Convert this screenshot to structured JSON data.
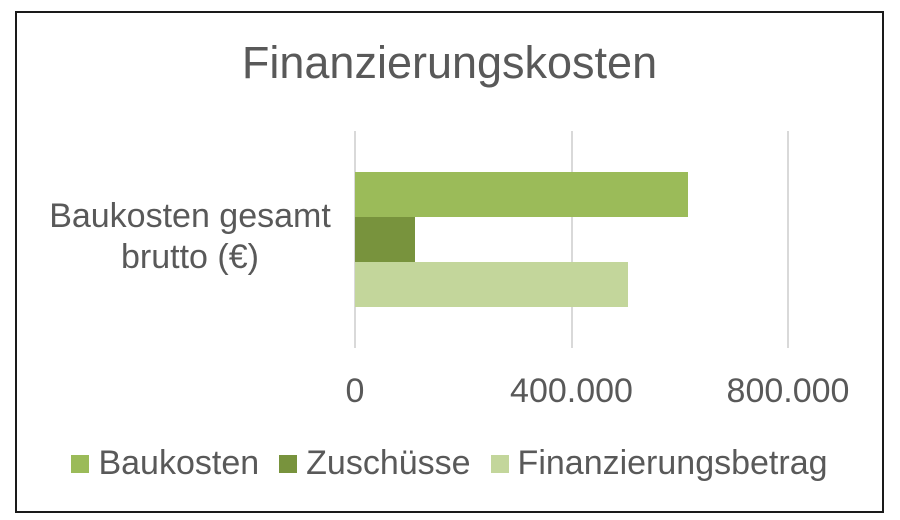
{
  "window": {
    "background": "#ffffff",
    "frame_border_color": "#1a1a1a"
  },
  "colors": {
    "text_gray": "#595959",
    "gridline": "#d9d9d9"
  },
  "chart_data": {
    "type": "bar",
    "orientation": "horizontal",
    "title": "Finanzierungskosten",
    "categories": [
      "Baukosten gesamt brutto (€)"
    ],
    "series": [
      {
        "name": "Baukosten",
        "color": "#9bbb59",
        "values": [
          615000
        ]
      },
      {
        "name": "Zuschüsse",
        "color": "#78933d",
        "values": [
          110000
        ]
      },
      {
        "name": "Finanzierungsbetrag",
        "color": "#c3d69b",
        "values": [
          505000
        ]
      }
    ],
    "xlim": [
      0,
      800000
    ],
    "x_ticks": [
      {
        "value": 0,
        "label": "0"
      },
      {
        "value": 400000,
        "label": "400.000"
      },
      {
        "value": 800000,
        "label": "800.000"
      }
    ],
    "grid": true,
    "legend_position": "bottom"
  }
}
